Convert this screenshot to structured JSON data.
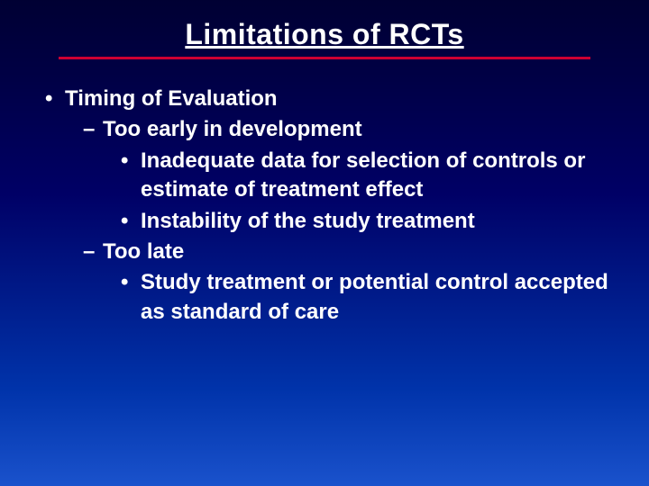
{
  "slide": {
    "title": "Limitations of RCTs",
    "bullets": {
      "l1": "Timing of Evaluation",
      "l2a": "Too early in development",
      "l3a": "Inadequate data for selection of controls or estimate of treatment effect",
      "l3b": "Instability of the study treatment",
      "l2b": "Too late",
      "l3c": "Study treatment or potential control accepted as standard of care"
    }
  },
  "style": {
    "background_gradient_top": "#000033",
    "background_gradient_bottom": "#1a52cc",
    "text_color": "#ffffff",
    "underline_color": "#cc0033",
    "title_fontsize_pt": 24,
    "body_fontsize_pt": 18,
    "font_family": "Arial",
    "font_weight": "bold",
    "bullet_l1": "•",
    "bullet_l2": "–",
    "bullet_l3": "•"
  }
}
